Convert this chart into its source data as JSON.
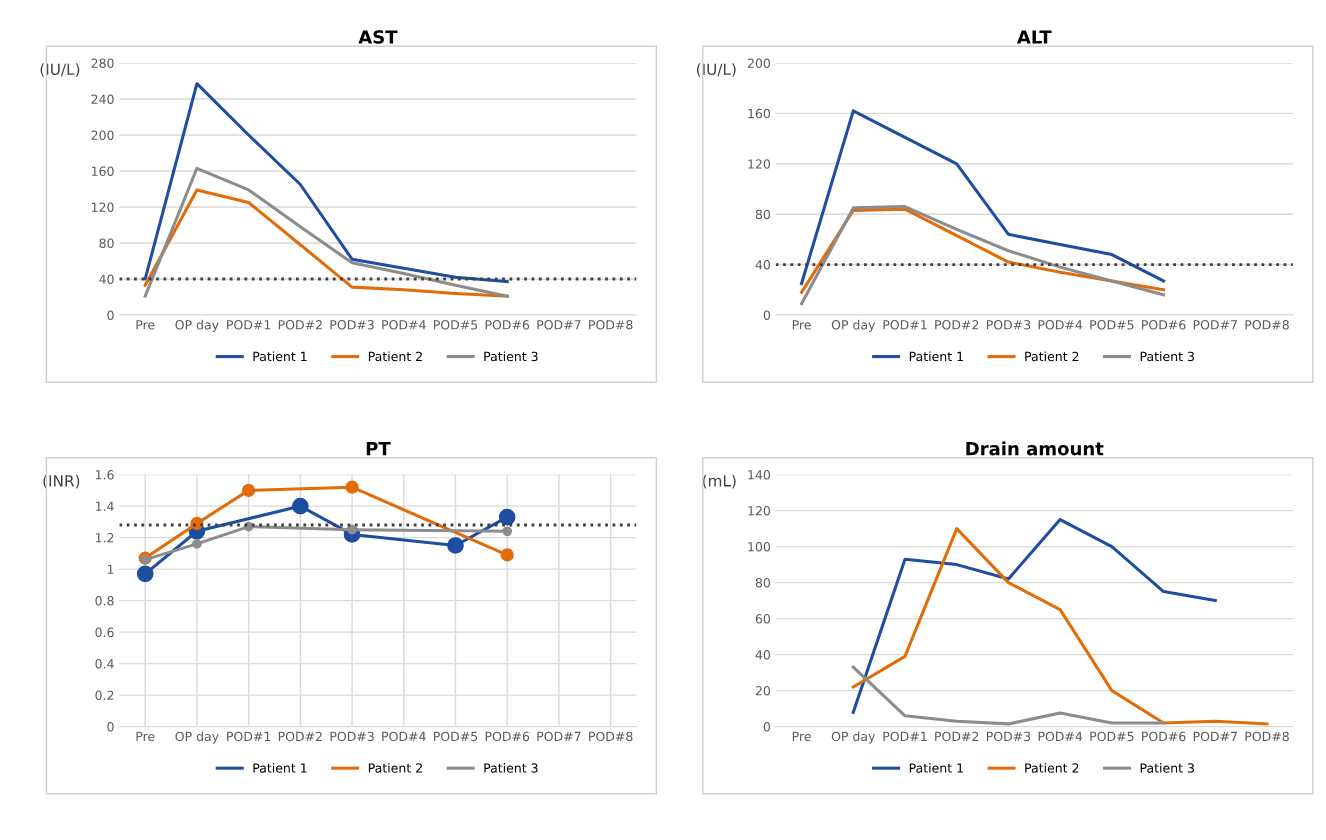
{
  "chart_data": [
    {
      "type": "line",
      "title": "AST",
      "ylabel": "(IU/L)",
      "categories": [
        "Pre",
        "OP day",
        "POD#1",
        "POD#2",
        "POD#3",
        "POD#4",
        "POD#5",
        "POD#6",
        "POD#7",
        "POD#8"
      ],
      "ylim": [
        0,
        280
      ],
      "yticks": [
        0,
        40,
        80,
        120,
        160,
        200,
        240,
        280
      ],
      "grid": "y",
      "legend": "bottom",
      "marker": "none",
      "ref_lines": [
        {
          "axis": "y",
          "value": 40,
          "color": "#404040",
          "line_style": "dotted"
        }
      ],
      "series": [
        {
          "name": "Patient 1",
          "color": "#1f4ea0",
          "values": [
            40,
            257,
            200,
            145,
            62,
            52,
            42,
            37,
            null,
            null
          ]
        },
        {
          "name": "Patient 2",
          "color": "#e36c09",
          "values": [
            33,
            139,
            125,
            78,
            31,
            28,
            24,
            21,
            null,
            null
          ]
        },
        {
          "name": "Patient 3",
          "color": "#8c8c8c",
          "values": [
            21,
            163,
            139,
            98,
            58,
            46,
            33,
            21,
            null,
            null
          ]
        }
      ]
    },
    {
      "type": "line",
      "title": "ALT",
      "ylabel": "(IU/L)",
      "categories": [
        "Pre",
        "OP day",
        "POD#1",
        "POD#2",
        "POD#3",
        "POD#4",
        "POD#5",
        "POD#6",
        "POD#7",
        "POD#8"
      ],
      "ylim": [
        0,
        200
      ],
      "yticks": [
        0,
        40,
        80,
        120,
        160,
        200
      ],
      "grid": "y",
      "legend": "bottom",
      "marker": "none",
      "ref_lines": [
        {
          "axis": "y",
          "value": 40,
          "color": "#404040",
          "line_style": "dotted"
        }
      ],
      "series": [
        {
          "name": "Patient 1",
          "color": "#1f4ea0",
          "values": [
            25,
            162,
            141,
            120,
            64,
            56,
            48,
            27,
            null,
            null
          ]
        },
        {
          "name": "Patient 2",
          "color": "#e36c09",
          "values": [
            18,
            83,
            84,
            63,
            42,
            34,
            27,
            20,
            null,
            null
          ]
        },
        {
          "name": "Patient 3",
          "color": "#8c8c8c",
          "values": [
            9,
            85,
            86,
            68,
            51,
            38,
            27,
            16,
            null,
            null
          ]
        }
      ]
    },
    {
      "type": "line",
      "title": "PT",
      "ylabel": "(INR)",
      "categories": [
        "Pre",
        "OP day",
        "POD#1",
        "POD#2",
        "POD#3",
        "POD#4",
        "POD#5",
        "POD#6",
        "POD#7",
        "POD#8"
      ],
      "ylim": [
        0,
        1.6
      ],
      "yticks": [
        0,
        0.2,
        0.4,
        0.6,
        0.8,
        1,
        1.2,
        1.4,
        1.6
      ],
      "grid": true,
      "legend": "bottom",
      "marker": "circle",
      "ref_lines": [
        {
          "axis": "y",
          "value": 1.28,
          "color": "#404040",
          "line_style": "dotted"
        }
      ],
      "series": [
        {
          "name": "Patient 1",
          "color": "#1f4ea0",
          "values": [
            0.97,
            1.24,
            null,
            1.4,
            1.22,
            null,
            1.15,
            1.33,
            null,
            null
          ]
        },
        {
          "name": "Patient 2",
          "color": "#e36c09",
          "values": [
            1.07,
            1.29,
            1.5,
            null,
            1.52,
            null,
            null,
            1.09,
            null,
            null
          ]
        },
        {
          "name": "Patient 3",
          "color": "#8c8c8c",
          "values": [
            1.06,
            1.16,
            1.27,
            null,
            1.25,
            null,
            null,
            1.24,
            null,
            null
          ]
        }
      ]
    },
    {
      "type": "line",
      "title": "Drain amount",
      "ylabel": "(mL)",
      "categories": [
        "Pre",
        "OP day",
        "POD#1",
        "POD#2",
        "POD#3",
        "POD#4",
        "POD#5",
        "POD#6",
        "POD#7",
        "POD#8"
      ],
      "ylim": [
        0,
        140
      ],
      "yticks": [
        0,
        20,
        40,
        60,
        80,
        100,
        120,
        140
      ],
      "grid": "y",
      "legend": "bottom",
      "marker": "none",
      "series": [
        {
          "name": "Patient 1",
          "color": "#1f4ea0",
          "values": [
            null,
            8,
            93,
            90,
            82,
            115,
            100,
            75,
            70,
            null
          ]
        },
        {
          "name": "Patient 2",
          "color": "#e36c09",
          "values": [
            null,
            22,
            39,
            110,
            80,
            65,
            20,
            2,
            3,
            1.5
          ]
        },
        {
          "name": "Patient 3",
          "color": "#8c8c8c",
          "values": [
            null,
            33,
            6,
            3,
            1.5,
            7.5,
            2,
            2,
            null,
            null
          ]
        }
      ]
    }
  ]
}
